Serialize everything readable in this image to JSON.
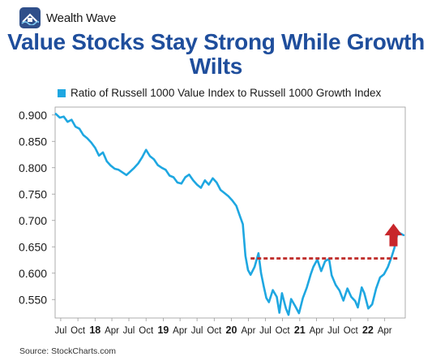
{
  "brand": {
    "name": "Wealth Wave",
    "logo_icon": "house-wave-logo-icon"
  },
  "source_text": "Source: StockCharts.com",
  "colors": {
    "series": "#1ea7e1",
    "title": "#1f4e9c",
    "reference_line": "#c0302e",
    "arrow": "#c8262b"
  },
  "chart_data": {
    "type": "line",
    "title": "Value Stocks Stay Strong While Growth Wilts",
    "xlabel": "",
    "ylabel": "",
    "ylim": [
      0.515,
      0.915
    ],
    "yticks": [
      0.55,
      0.6,
      0.65,
      0.7,
      0.75,
      0.8,
      0.85,
      0.9
    ],
    "ytick_labels": [
      "0.550",
      "0.600",
      "0.650",
      "0.700",
      "0.750",
      "0.800",
      "0.850",
      "0.900"
    ],
    "xlim": [
      "2017-06-01",
      "2022-07-20"
    ],
    "xticks": [
      {
        "date": "2017-07-01",
        "label": "Jul",
        "major": false
      },
      {
        "date": "2017-10-01",
        "label": "Oct",
        "major": false
      },
      {
        "date": "2018-01-01",
        "label": "18",
        "major": true
      },
      {
        "date": "2018-04-01",
        "label": "Apr",
        "major": false
      },
      {
        "date": "2018-07-01",
        "label": "Jul",
        "major": false
      },
      {
        "date": "2018-10-01",
        "label": "Oct",
        "major": false
      },
      {
        "date": "2019-01-01",
        "label": "19",
        "major": true
      },
      {
        "date": "2019-04-01",
        "label": "Apr",
        "major": false
      },
      {
        "date": "2019-07-01",
        "label": "Jul",
        "major": false
      },
      {
        "date": "2019-10-01",
        "label": "Oct",
        "major": false
      },
      {
        "date": "2020-01-01",
        "label": "20",
        "major": true
      },
      {
        "date": "2020-04-01",
        "label": "Apr",
        "major": false
      },
      {
        "date": "2020-07-01",
        "label": "Jul",
        "major": false
      },
      {
        "date": "2020-10-01",
        "label": "Oct",
        "major": false
      },
      {
        "date": "2021-01-01",
        "label": "21",
        "major": true
      },
      {
        "date": "2021-04-01",
        "label": "Apr",
        "major": false
      },
      {
        "date": "2021-07-01",
        "label": "Jul",
        "major": false
      },
      {
        "date": "2021-10-01",
        "label": "Oct",
        "major": false
      },
      {
        "date": "2022-01-01",
        "label": "22",
        "major": true
      },
      {
        "date": "2022-04-01",
        "label": "Apr",
        "major": false
      }
    ],
    "grid": false,
    "legend": "top-left",
    "series": [
      {
        "name": "Ratio of Russell 1000 Value Index to Russell 1000 Growth Index",
        "x": [
          "2017-06-05",
          "2017-06-26",
          "2017-07-17",
          "2017-08-07",
          "2017-08-28",
          "2017-09-18",
          "2017-10-09",
          "2017-10-30",
          "2017-11-20",
          "2017-12-11",
          "2018-01-01",
          "2018-01-22",
          "2018-02-12",
          "2018-03-05",
          "2018-03-26",
          "2018-04-16",
          "2018-05-07",
          "2018-05-28",
          "2018-06-18",
          "2018-07-09",
          "2018-07-30",
          "2018-08-20",
          "2018-09-10",
          "2018-10-01",
          "2018-10-22",
          "2018-11-12",
          "2018-12-03",
          "2018-12-24",
          "2019-01-14",
          "2019-02-04",
          "2019-02-25",
          "2019-03-18",
          "2019-04-08",
          "2019-04-29",
          "2019-05-20",
          "2019-06-10",
          "2019-07-01",
          "2019-07-22",
          "2019-08-12",
          "2019-09-02",
          "2019-09-23",
          "2019-10-14",
          "2019-11-04",
          "2019-11-25",
          "2019-12-16",
          "2020-01-06",
          "2020-01-27",
          "2020-02-17",
          "2020-03-02",
          "2020-03-16",
          "2020-03-30",
          "2020-04-13",
          "2020-05-04",
          "2020-05-25",
          "2020-06-08",
          "2020-06-22",
          "2020-07-06",
          "2020-07-20",
          "2020-08-10",
          "2020-08-31",
          "2020-09-14",
          "2020-09-28",
          "2020-10-19",
          "2020-11-02",
          "2020-11-16",
          "2020-12-07",
          "2020-12-28",
          "2021-01-18",
          "2021-02-08",
          "2021-03-01",
          "2021-03-15",
          "2021-04-05",
          "2021-04-26",
          "2021-05-17",
          "2021-06-07",
          "2021-06-21",
          "2021-07-12",
          "2021-08-02",
          "2021-08-23",
          "2021-09-13",
          "2021-10-04",
          "2021-10-25",
          "2021-11-08",
          "2021-11-29",
          "2021-12-13",
          "2022-01-03",
          "2022-01-24",
          "2022-02-14",
          "2022-03-07",
          "2022-03-28",
          "2022-04-18",
          "2022-05-09",
          "2022-05-23",
          "2022-06-06",
          "2022-06-20",
          "2022-07-11"
        ],
        "y": [
          0.902,
          0.895,
          0.897,
          0.887,
          0.891,
          0.878,
          0.874,
          0.862,
          0.856,
          0.848,
          0.838,
          0.823,
          0.829,
          0.812,
          0.804,
          0.798,
          0.796,
          0.791,
          0.786,
          0.793,
          0.8,
          0.808,
          0.82,
          0.834,
          0.822,
          0.816,
          0.805,
          0.8,
          0.796,
          0.785,
          0.782,
          0.772,
          0.77,
          0.782,
          0.787,
          0.776,
          0.768,
          0.762,
          0.776,
          0.768,
          0.78,
          0.772,
          0.758,
          0.752,
          0.746,
          0.738,
          0.728,
          0.707,
          0.693,
          0.633,
          0.606,
          0.597,
          0.612,
          0.638,
          0.6,
          0.575,
          0.553,
          0.545,
          0.568,
          0.555,
          0.525,
          0.562,
          0.533,
          0.521,
          0.551,
          0.538,
          0.524,
          0.553,
          0.573,
          0.598,
          0.612,
          0.626,
          0.604,
          0.623,
          0.627,
          0.596,
          0.578,
          0.567,
          0.548,
          0.571,
          0.555,
          0.547,
          0.535,
          0.573,
          0.562,
          0.533,
          0.541,
          0.571,
          0.592,
          0.598,
          0.612,
          0.632,
          0.648,
          0.672,
          0.676,
          0.672
        ]
      }
    ],
    "reference_line": {
      "y": 0.628,
      "x_start": "2020-04-13",
      "x_end": "2022-06-20"
    },
    "annotations": [
      {
        "type": "arrow-up",
        "x": "2022-05-18",
        "y_base": 0.651,
        "y_tip": 0.694
      }
    ]
  }
}
